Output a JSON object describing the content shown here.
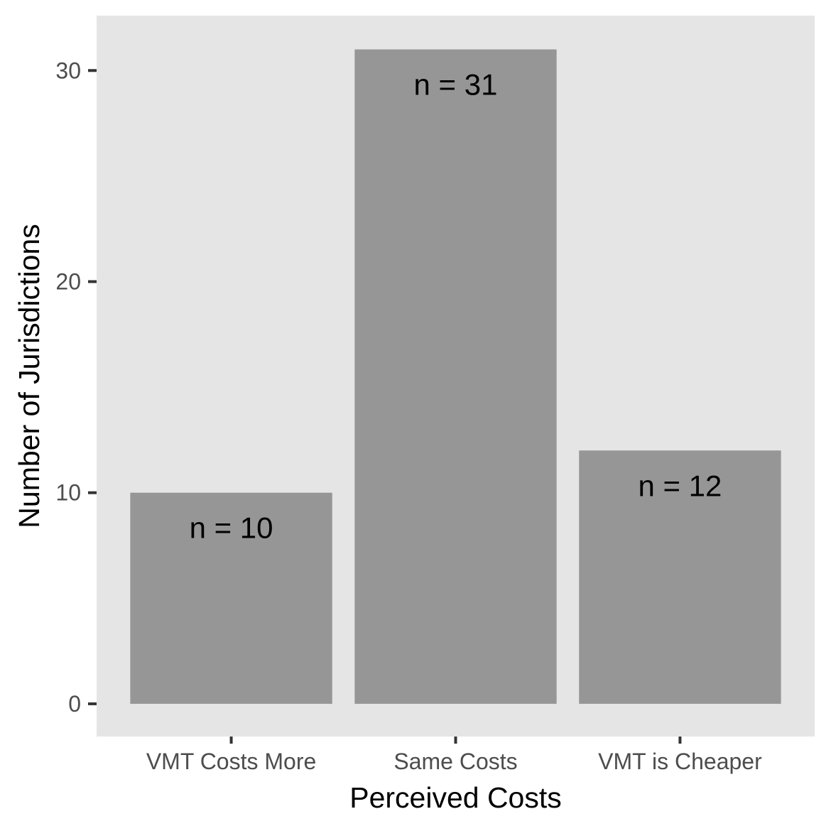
{
  "chart_data": {
    "type": "bar",
    "xlabel": "Perceived Costs",
    "ylabel": "Number of Jurisdictions",
    "categories": [
      "VMT Costs More",
      "Same Costs",
      "VMT is Cheaper"
    ],
    "values": [
      10,
      31,
      12
    ],
    "bar_labels": [
      "n = 10",
      "n = 31",
      "n = 12"
    ],
    "ylim": [
      -1.55,
      32.6
    ],
    "yticks": [
      0,
      10,
      20,
      30
    ],
    "ytick_labels": [
      "0",
      "10",
      "20",
      "30"
    ],
    "grid": false,
    "legend": "none",
    "colors": {
      "panel_background": "#e5e5e5",
      "bar_fill": "#969696",
      "tick_line": "#333333",
      "tick_label": "#4d4d4d",
      "text": "#000000"
    }
  }
}
